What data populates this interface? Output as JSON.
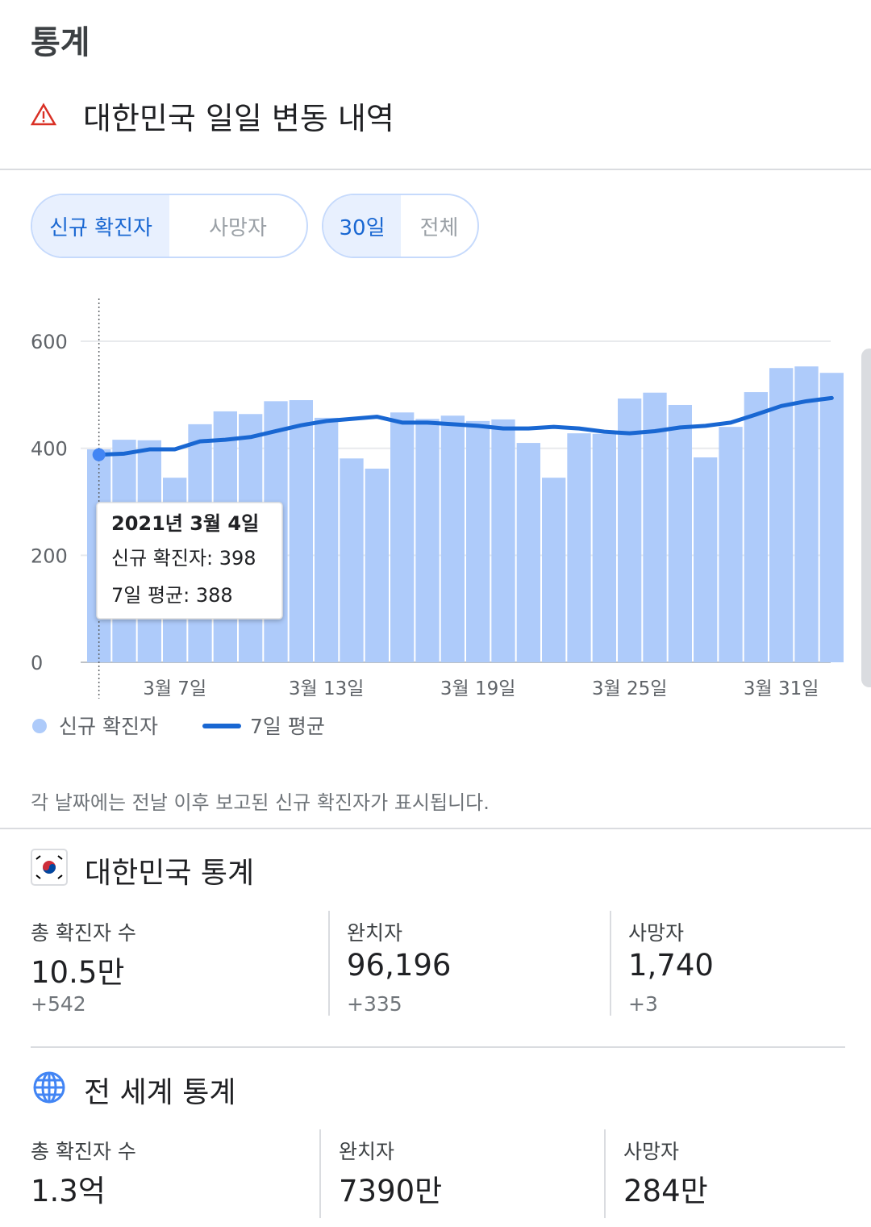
{
  "header": {
    "title": "통계",
    "subtitle": "대한민국 일일 변동 내역"
  },
  "tabs": {
    "metric": [
      "신규 확진자",
      "사망자"
    ],
    "range": [
      "30일",
      "전체"
    ]
  },
  "chart_data": {
    "type": "bar",
    "categories": [
      null,
      null,
      null,
      "3월 7일",
      null,
      null,
      null,
      null,
      null,
      "3월 13일",
      null,
      null,
      null,
      null,
      null,
      "3월 19일",
      null,
      null,
      null,
      null,
      null,
      "3월 25일",
      null,
      null,
      null,
      null,
      null,
      "3월 31일",
      null,
      null
    ],
    "series": [
      {
        "name": "신규 확진자",
        "color": "#aecbfa",
        "type": "bar",
        "values": [
          398,
          416,
          415,
          345,
          445,
          469,
          464,
          488,
          490,
          457,
          381,
          362,
          467,
          455,
          461,
          451,
          454,
          410,
          345,
          428,
          427,
          493,
          504,
          481,
          383,
          440,
          505,
          550,
          553,
          541
        ]
      },
      {
        "name": "7일 평균",
        "color": "#1967d2",
        "type": "line",
        "values": [
          388,
          390,
          398,
          398,
          413,
          416,
          421,
          432,
          443,
          451,
          455,
          459,
          448,
          448,
          445,
          442,
          437,
          437,
          440,
          437,
          431,
          428,
          432,
          439,
          442,
          448,
          463,
          479,
          488,
          494
        ]
      }
    ],
    "ylim": [
      0,
      680
    ],
    "yticks": [
      0,
      200,
      400,
      600
    ],
    "grid": true,
    "tooltip": {
      "title": "2021년 3월 4일",
      "lines": [
        "신규 확진자: 398",
        "7일 평균: 388"
      ]
    }
  },
  "note": "각 날짜에는 전날 이후 보고된 신규 확진자가 표시됩니다.",
  "korea_stats": {
    "title": "대한민국 통계",
    "items": [
      {
        "label": "총 확진자 수",
        "value": "10.5만",
        "change": "+542"
      },
      {
        "label": "완치자",
        "value": "96,196",
        "change": "+335"
      },
      {
        "label": "사망자",
        "value": "1,740",
        "change": "+3"
      }
    ]
  },
  "world_stats": {
    "title": "전 세계 통계",
    "items": [
      {
        "label": "총 확진자 수",
        "value": "1.3억"
      },
      {
        "label": "완치자",
        "value": "7390만"
      },
      {
        "label": "사망자",
        "value": "284만"
      }
    ]
  }
}
